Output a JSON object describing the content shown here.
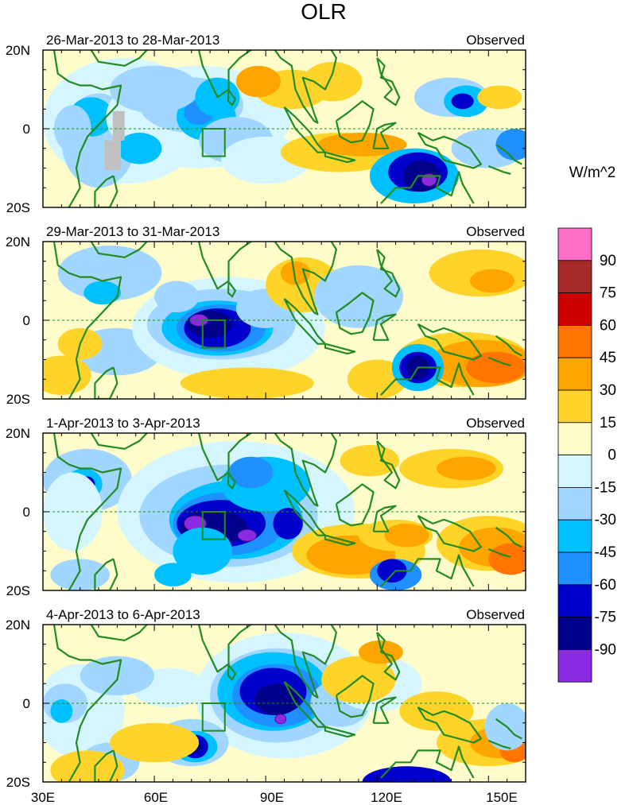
{
  "figure": {
    "title": "OLR",
    "units_label": "W/m^2"
  },
  "panels": [
    {
      "date_range": "26-Mar-2013 to 28-Mar-2013",
      "status": "Observed"
    },
    {
      "date_range": "29-Mar-2013 to 31-Mar-2013",
      "status": "Observed"
    },
    {
      "date_range": "1-Apr-2013 to 3-Apr-2013",
      "status": "Observed"
    },
    {
      "date_range": "4-Apr-2013 to 6-Apr-2013",
      "status": "Observed"
    }
  ],
  "axes": {
    "lat_ticks": [
      "20N",
      "0",
      "20S"
    ],
    "lon_ticks": [
      "30E",
      "60E",
      "90E",
      "120E",
      "150E"
    ]
  },
  "colorbar": {
    "labels": [
      "90",
      "75",
      "60",
      "45",
      "30",
      "15",
      "0",
      "-15",
      "-30",
      "-45",
      "-60",
      "-75",
      "-90"
    ],
    "colors_top_to_bottom": [
      "#ff6ec7",
      "#a52a2a",
      "#cd0000",
      "#ff7500",
      "#ffa500",
      "#ffd42a",
      "#fffccc",
      "#d5f6ff",
      "#a0d6ff",
      "#00c0ff",
      "#1e90ff",
      "#0000cd",
      "#00008b",
      "#8a2be2"
    ]
  },
  "colors": {
    "coastline": "#228b22",
    "box": "#228b22",
    "equator": "#228b22",
    "missing": "#c0c0c0"
  }
}
